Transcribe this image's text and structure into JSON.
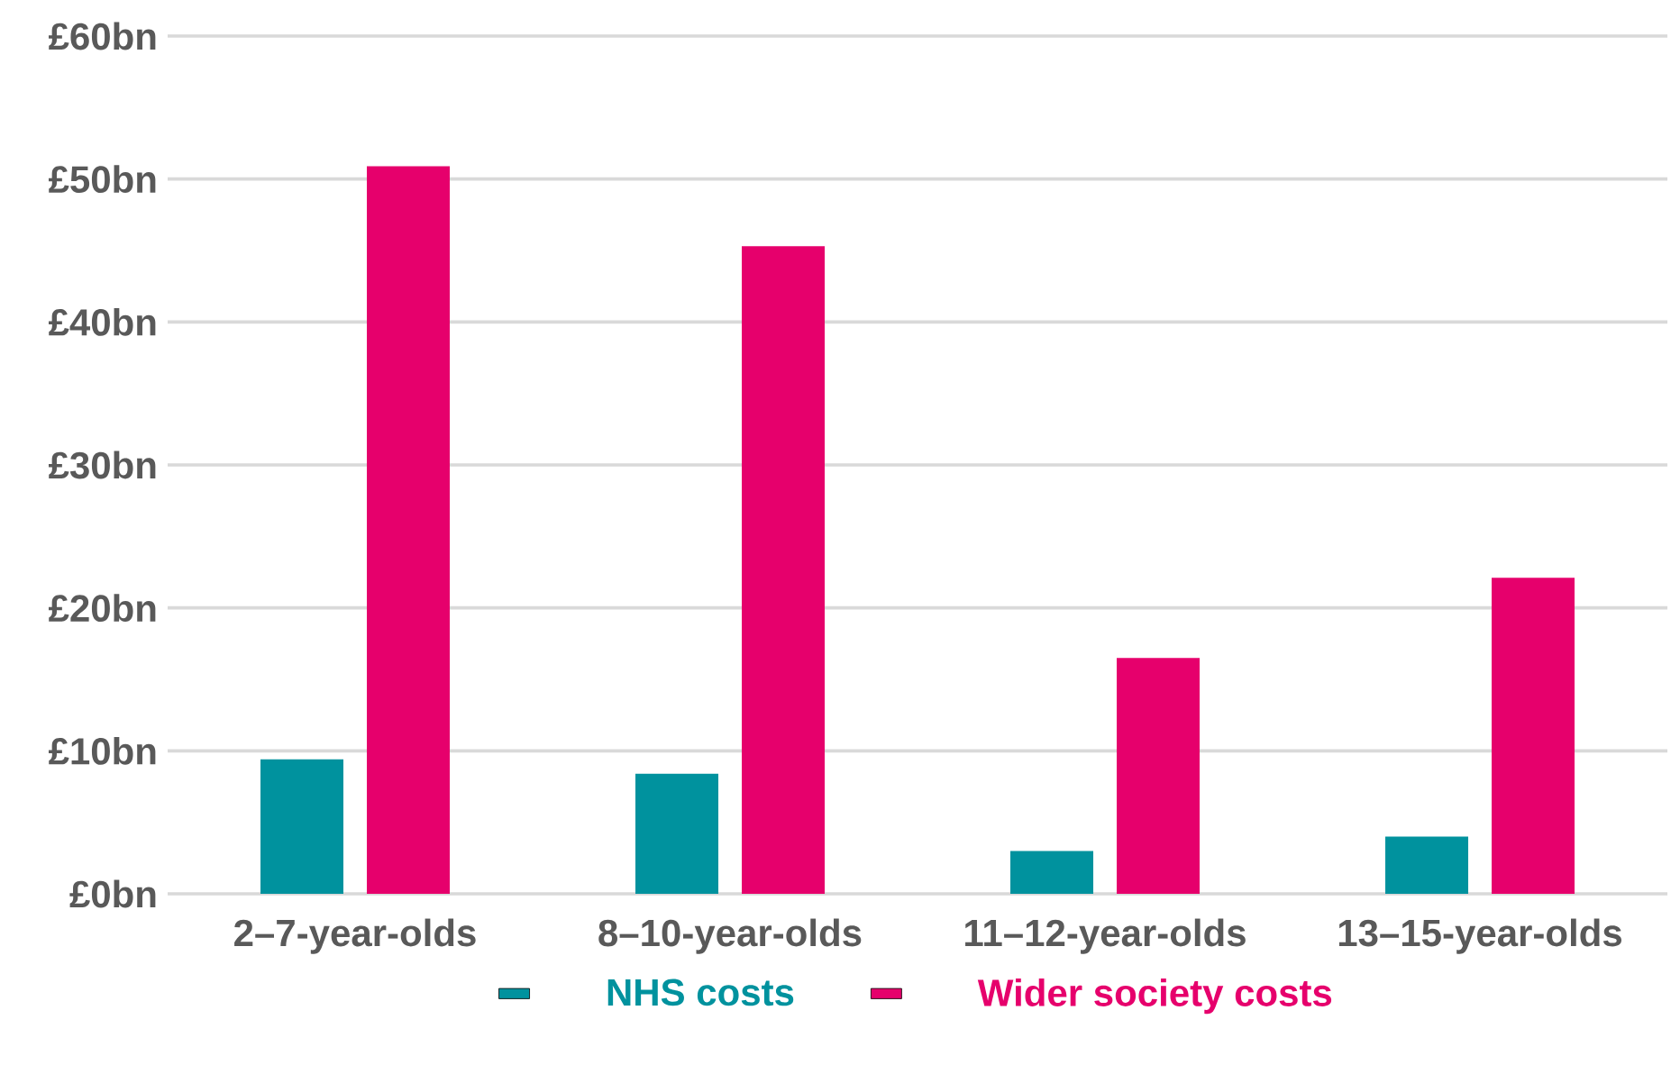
{
  "chart_data": {
    "type": "bar",
    "categories": [
      "2–7-year-olds",
      "8–10-year-olds",
      "11–12-year-olds",
      "13–15-year-olds"
    ],
    "series": [
      {
        "name": "NHS costs",
        "color": "#00929e",
        "values": [
          9.4,
          8.4,
          3.0,
          4.0
        ]
      },
      {
        "name": "Wider society costs",
        "color": "#e6006c",
        "values": [
          50.9,
          45.3,
          16.5,
          22.1
        ]
      }
    ],
    "ylim": [
      0,
      60
    ],
    "yticks": [
      {
        "value": 0,
        "label": "£0bn"
      },
      {
        "value": 10,
        "label": "£10bn"
      },
      {
        "value": 20,
        "label": "£20bn"
      },
      {
        "value": 30,
        "label": "£30bn"
      },
      {
        "value": 40,
        "label": "£40bn"
      },
      {
        "value": 50,
        "label": "£50bn"
      },
      {
        "value": 60,
        "label": "£60bn"
      }
    ],
    "grid": "y",
    "legend": "bottom"
  }
}
